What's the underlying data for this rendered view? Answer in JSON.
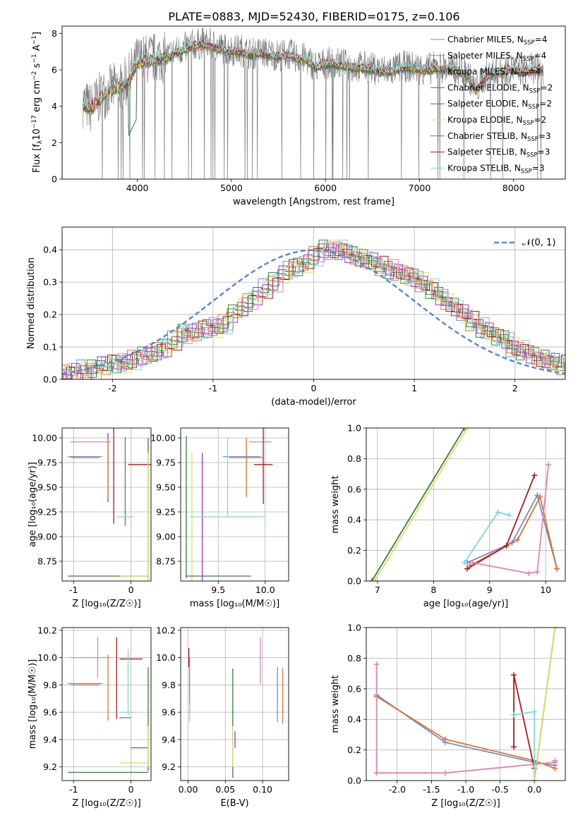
{
  "title": "PLATE=0883, MJD=52430, FIBERID=0175, z=0.106",
  "colors": {
    "chabrier_miles": "#6a8fd6",
    "salpeter_miles": "#e3702d",
    "kroupa_miles": "#2e8b2e",
    "chabrier_elodie": "#3d7a3d",
    "salpeter_elodie": "#a032c8",
    "kroupa_elodie": "#cfe56a",
    "chabrier_stelib": "#707070",
    "salpeter_stelib": "#b01818",
    "kroupa_stelib": "#7fd6d6",
    "pink": "#e37fb7",
    "gauss": "#5b88d8"
  },
  "chart_data": [
    {
      "id": "spectrum",
      "type": "line",
      "xlabel": "wavelength [Angstrom, rest frame]",
      "xlim": [
        3200,
        8550
      ],
      "ylim": [
        0,
        8.4
      ],
      "xticks": [
        4000,
        5000,
        6000,
        7000,
        8000
      ],
      "yticks": [
        0,
        2,
        4,
        6,
        8
      ],
      "legend_placement": "upper-right",
      "series": [
        {
          "name": "Chabrier MILES",
          "sub": "SSP",
          "n": 4,
          "color": "chabrier_miles"
        },
        {
          "name": "Salpeter MILES",
          "sub": "SSP",
          "n": 4,
          "color": "salpeter_miles"
        },
        {
          "name": "Kroupa MILES",
          "sub": "SSP",
          "n": 4,
          "color": "kroupa_miles"
        },
        {
          "name": "Chabrier ELODIE",
          "sub": "SSP",
          "n": 2,
          "color": "chabrier_elodie"
        },
        {
          "name": "Salpeter ELODIE",
          "sub": "SSP",
          "n": 2,
          "color": "salpeter_elodie"
        },
        {
          "name": "Kroupa ELODIE",
          "sub": "SSP",
          "n": 2,
          "color": "kroupa_elodie"
        },
        {
          "name": "Chabrier STELIB",
          "sub": "SSP",
          "n": 3,
          "color": "chabrier_stelib"
        },
        {
          "name": "Salpeter STELIB",
          "sub": "SSP",
          "n": 3,
          "color": "salpeter_stelib"
        },
        {
          "name": "Kroupa STELIB",
          "sub": "SSP",
          "n": 3,
          "color": "kroupa_stelib"
        }
      ],
      "continuum": [
        [
          3400,
          4.2
        ],
        [
          3500,
          3.8
        ],
        [
          3600,
          4.4
        ],
        [
          3700,
          4.8
        ],
        [
          3800,
          5.0
        ],
        [
          3900,
          5.3
        ],
        [
          4000,
          6.4
        ],
        [
          4100,
          6.5
        ],
        [
          4200,
          6.6
        ],
        [
          4300,
          6.6
        ],
        [
          4400,
          6.9
        ],
        [
          4500,
          7.1
        ],
        [
          4600,
          7.3
        ],
        [
          4700,
          7.4
        ],
        [
          4800,
          7.3
        ],
        [
          4900,
          7.1
        ],
        [
          5000,
          7.0
        ],
        [
          5100,
          7.0
        ],
        [
          5200,
          6.8
        ],
        [
          5300,
          6.9
        ],
        [
          5400,
          6.8
        ],
        [
          5500,
          6.7
        ],
        [
          5600,
          6.8
        ],
        [
          5700,
          6.6
        ],
        [
          5800,
          6.5
        ],
        [
          5900,
          6.1
        ],
        [
          6000,
          6.3
        ],
        [
          6100,
          6.3
        ],
        [
          6200,
          6.2
        ],
        [
          6300,
          6.1
        ],
        [
          6400,
          6.1
        ],
        [
          6500,
          6.0
        ],
        [
          6600,
          5.9
        ],
        [
          6700,
          5.9
        ],
        [
          6800,
          6.1
        ],
        [
          6900,
          6.1
        ],
        [
          7000,
          6.0
        ],
        [
          7100,
          6.0
        ],
        [
          7200,
          6.1
        ],
        [
          7300,
          6.0
        ],
        [
          7400,
          5.9
        ],
        [
          7500,
          5.8
        ],
        [
          7600,
          4.8
        ],
        [
          7700,
          5.6
        ],
        [
          7800,
          5.8
        ],
        [
          7900,
          5.9
        ],
        [
          8000,
          6.0
        ],
        [
          8100,
          5.9
        ],
        [
          8200,
          6.0
        ],
        [
          8300,
          6.0
        ]
      ]
    },
    {
      "id": "residuals",
      "type": "line",
      "xlabel": "(data-model)/error",
      "ylabel": "Normed distribution",
      "xlim": [
        -2.5,
        2.5
      ],
      "ylim": [
        0,
        0.47
      ],
      "xticks": [
        -2,
        -1,
        0,
        1,
        2
      ],
      "yticks": [
        0.0,
        0.1,
        0.2,
        0.3,
        0.4
      ],
      "grid": true,
      "legend_placement": "upper-right",
      "gauss_label": "𝒩(0, 1)",
      "bin_width": 0.1,
      "histogram": [
        0.01,
        0.02,
        0.025,
        0.03,
        0.03,
        0.04,
        0.045,
        0.05,
        0.05,
        0.06,
        0.07,
        0.08,
        0.09,
        0.1,
        0.12,
        0.14,
        0.14,
        0.15,
        0.16,
        0.16,
        0.17,
        0.2,
        0.22,
        0.24,
        0.26,
        0.28,
        0.3,
        0.32,
        0.34,
        0.35,
        0.36,
        0.38,
        0.4,
        0.4,
        0.4,
        0.39,
        0.38,
        0.37,
        0.36,
        0.35,
        0.34,
        0.33,
        0.32,
        0.31,
        0.3,
        0.28,
        0.26,
        0.24,
        0.22,
        0.2,
        0.18,
        0.16,
        0.15,
        0.13,
        0.12,
        0.1,
        0.09,
        0.08,
        0.07,
        0.06,
        0.05,
        0.045,
        0.04,
        0.035,
        0.03
      ]
    },
    {
      "id": "age_vs_z",
      "type": "scatter",
      "xlabel": "Z [log₁₀(Z/Z☉)]",
      "ylabel": "age  [log₁₀(age/yr)]",
      "xlim": [
        -1.2,
        0.35
      ],
      "ylim": [
        8.55,
        10.1
      ],
      "xticks": [
        -1,
        0
      ],
      "yticks": [
        8.75,
        9.0,
        9.25,
        9.5,
        9.75,
        10.0
      ],
      "grid": true,
      "errorbars": [
        {
          "color": "pink",
          "x": -0.7,
          "y": 9.96,
          "xe": 0.35,
          "ye": 0.0
        },
        {
          "color": "chabrier_miles",
          "x": -0.8,
          "y": 9.81,
          "xe": 0.3,
          "ye": 0.0
        },
        {
          "color": "salpeter_miles",
          "x": -0.8,
          "y": 9.8,
          "xe": 0.25,
          "ye": 0.0
        },
        {
          "color": "salpeter_elodie",
          "x": -0.4,
          "y": 9.7,
          "xe": 0.0,
          "ye": 0.35
        },
        {
          "color": "salpeter_miles",
          "x": -0.4,
          "y": 9.7,
          "xe": 0.0,
          "ye": 0.3
        },
        {
          "color": "salpeter_stelib",
          "x": -0.3,
          "y": 9.73,
          "xe": 0.0,
          "ye": 0.6
        },
        {
          "color": "salpeter_stelib",
          "x": 0.15,
          "y": 9.73,
          "xe": 0.2,
          "ye": 0.0
        },
        {
          "color": "chabrier_stelib",
          "x": -0.1,
          "y": 9.56,
          "xe": 0.0,
          "ye": 0.45
        },
        {
          "color": "kroupa_stelib",
          "x": -0.1,
          "y": 9.2,
          "xe": 0.15,
          "ye": 0.0
        },
        {
          "color": "chabrier_elodie",
          "x": 0.3,
          "y": 9.28,
          "xe": 0.0,
          "ye": 0.72
        },
        {
          "color": "kroupa_elodie",
          "x": 0.3,
          "y": 9.2,
          "xe": 0.0,
          "ye": 0.65
        },
        {
          "color": "chabrier_elodie",
          "x": -0.4,
          "y": 8.6,
          "xe": 0.7,
          "ye": 0.0
        },
        {
          "color": "kroupa_elodie",
          "x": 0.05,
          "y": 8.6,
          "xe": 0.25,
          "ye": 0.0
        }
      ]
    },
    {
      "id": "age_vs_mass",
      "type": "scatter",
      "xlabel": "mass [log₁₀(M/M☉)]",
      "xlim": [
        9.1,
        10.25
      ],
      "ylim": [
        8.55,
        10.1
      ],
      "xticks": [
        9.5,
        10.0
      ],
      "yticks": [
        8.75,
        9.0,
        9.25,
        9.5,
        9.75,
        10.0
      ],
      "grid": true,
      "errorbars": [
        {
          "color": "pink",
          "x": 9.95,
          "y": 9.96,
          "xe": 0.12,
          "ye": 0.0
        },
        {
          "color": "chabrier_miles",
          "x": 9.75,
          "y": 9.81,
          "xe": 0.2,
          "ye": 0.0
        },
        {
          "color": "salpeter_miles",
          "x": 9.8,
          "y": 9.8,
          "xe": 0.18,
          "ye": 0.0
        },
        {
          "color": "salpeter_miles",
          "x": 9.8,
          "y": 9.7,
          "xe": 0.0,
          "ye": 0.3
        },
        {
          "color": "salpeter_elodie",
          "x": 9.33,
          "y": 9.2,
          "xe": 0.0,
          "ye": 0.65
        },
        {
          "color": "kroupa_elodie",
          "x": 9.22,
          "y": 9.2,
          "xe": 0.0,
          "ye": 0.65
        },
        {
          "color": "chabrier_elodie",
          "x": 9.16,
          "y": 9.3,
          "xe": 0.0,
          "ye": 0.72
        },
        {
          "color": "salpeter_stelib",
          "x": 9.98,
          "y": 9.73,
          "xe": 0.1,
          "ye": 0.4
        },
        {
          "color": "kroupa_stelib",
          "x": 9.6,
          "y": 9.2,
          "xe": 0.4,
          "ye": 0.0
        },
        {
          "color": "kroupa_stelib",
          "x": 9.6,
          "y": 9.6,
          "xe": 0.0,
          "ye": 0.4
        },
        {
          "color": "chabrier_elodie",
          "x": 9.5,
          "y": 8.6,
          "xe": 0.35,
          "ye": 0.0
        }
      ]
    },
    {
      "id": "weight_vs_age",
      "type": "line",
      "xlabel": "age  [log₁₀(age/yr)]",
      "ylabel": "mass weight",
      "xlim": [
        6.8,
        10.35
      ],
      "ylim": [
        0,
        1.0
      ],
      "xticks": [
        7,
        8,
        9,
        10
      ],
      "yticks": [
        0.0,
        0.2,
        0.4,
        0.6,
        0.8,
        1.0
      ],
      "grid": true,
      "series": [
        {
          "color": "chabrier_elodie",
          "x": [
            6.9,
            8.55
          ],
          "y": [
            0.0,
            1.0
          ]
        },
        {
          "color": "kroupa_elodie",
          "x": [
            6.95,
            8.6
          ],
          "y": [
            0.0,
            1.0
          ]
        },
        {
          "color": "chabrier_miles",
          "x": [
            8.6,
            9.4,
            9.85,
            10.2
          ],
          "y": [
            0.12,
            0.25,
            0.56,
            0.08
          ]
        },
        {
          "color": "salpeter_miles",
          "x": [
            8.65,
            9.5,
            9.9,
            10.2
          ],
          "y": [
            0.1,
            0.27,
            0.55,
            0.08
          ]
        },
        {
          "color": "salpeter_stelib",
          "x": [
            8.6,
            9.3,
            9.8
          ],
          "y": [
            0.08,
            0.23,
            0.69
          ]
        },
        {
          "color": "kroupa_stelib",
          "x": [
            8.55,
            9.15,
            9.35
          ],
          "y": [
            0.12,
            0.45,
            0.43
          ]
        },
        {
          "color": "pink",
          "x": [
            8.7,
            9.7,
            9.85,
            10.05
          ],
          "y": [
            0.12,
            0.05,
            0.06,
            0.76
          ]
        }
      ]
    },
    {
      "id": "mass_vs_z",
      "type": "scatter",
      "xlabel": "Z [log₁₀(Z/Z☉)]",
      "ylabel": "mass [log₁₀(M/M☉)]",
      "xlim": [
        -1.2,
        0.35
      ],
      "ylim": [
        9.1,
        10.22
      ],
      "xticks": [
        -1,
        0
      ],
      "yticks": [
        9.2,
        9.4,
        9.6,
        9.8,
        10.0,
        10.2
      ],
      "grid": true,
      "errorbars": [
        {
          "color": "pink",
          "x": -0.7,
          "y": 10.0,
          "xe": 0.35,
          "ye": 0.0
        },
        {
          "color": "pink",
          "x": -0.58,
          "y": 10.0,
          "xe": 0.0,
          "ye": 0.15
        },
        {
          "color": "chabrier_miles",
          "x": -0.8,
          "y": 9.81,
          "xe": 0.3,
          "ye": 0.0
        },
        {
          "color": "salpeter_miles",
          "x": -0.8,
          "y": 9.8,
          "xe": 0.25,
          "ye": 0.0
        },
        {
          "color": "salpeter_miles",
          "x": -0.4,
          "y": 9.78,
          "xe": 0.0,
          "ye": 0.24
        },
        {
          "color": "salpeter_stelib",
          "x": 0.0,
          "y": 9.99,
          "xe": 0.2,
          "ye": 0.0
        },
        {
          "color": "salpeter_stelib",
          "x": -0.25,
          "y": 9.85,
          "xe": 0.0,
          "ye": 0.3
        },
        {
          "color": "chabrier_stelib",
          "x": -0.1,
          "y": 9.56,
          "xe": 0.1,
          "ye": 0.0
        },
        {
          "color": "kroupa_stelib",
          "x": -0.1,
          "y": 9.6,
          "xe": 0.15,
          "ye": 0.0
        },
        {
          "color": "kroupa_stelib",
          "x": -0.05,
          "y": 9.82,
          "xe": 0.0,
          "ye": 0.24
        },
        {
          "color": "chabrier_elodie",
          "x": -0.4,
          "y": 9.16,
          "xe": 0.7,
          "ye": 0.0
        },
        {
          "color": "chabrier_elodie",
          "x": 0.3,
          "y": 9.55,
          "xe": 0.0,
          "ye": 0.38
        },
        {
          "color": "salpeter_elodie",
          "x": 0.15,
          "y": 9.34,
          "xe": 0.15,
          "ye": 0.0
        },
        {
          "color": "kroupa_elodie",
          "x": 0.05,
          "y": 9.23,
          "xe": 0.25,
          "ye": 0.0
        },
        {
          "color": "kroupa_elodie",
          "x": 0.3,
          "y": 9.35,
          "xe": 0.0,
          "ye": 0.15
        }
      ]
    },
    {
      "id": "mass_vs_ebv",
      "type": "scatter",
      "xlabel": "E(B-V)",
      "xlim": [
        -0.01,
        0.135
      ],
      "ylim": [
        9.1,
        10.22
      ],
      "xticks": [
        0.0,
        0.05,
        0.1
      ],
      "yticks": [
        9.2,
        9.4,
        9.6,
        9.8,
        10.0,
        10.2
      ],
      "grid": true,
      "errorbars": [
        {
          "color": "salpeter_stelib",
          "x": 0.001,
          "y": 10.0,
          "xe": 0.0,
          "ye": 0.07
        },
        {
          "color": "chabrier_miles",
          "x": 0.002,
          "y": 9.8,
          "xe": 0.0,
          "ye": 0.2
        },
        {
          "color": "kroupa_stelib",
          "x": 0.002,
          "y": 9.6,
          "xe": 0.0,
          "ye": 0.07
        },
        {
          "color": "chabrier_elodie",
          "x": 0.06,
          "y": 9.52,
          "xe": 0.0,
          "ye": 0.4
        },
        {
          "color": "kroupa_elodie",
          "x": 0.06,
          "y": 9.35,
          "xe": 0.0,
          "ye": 0.15
        },
        {
          "color": "salpeter_elodie",
          "x": 0.063,
          "y": 9.4,
          "xe": 0.0,
          "ye": 0.06
        },
        {
          "color": "pink",
          "x": 0.097,
          "y": 9.98,
          "xe": 0.0,
          "ye": 0.17
        },
        {
          "color": "chabrier_miles",
          "x": 0.12,
          "y": 9.73,
          "xe": 0.0,
          "ye": 0.2
        },
        {
          "color": "salpeter_miles",
          "x": 0.127,
          "y": 9.72,
          "xe": 0.0,
          "ye": 0.2
        }
      ]
    },
    {
      "id": "weight_vs_z",
      "type": "line",
      "xlabel": "Z [log₁₀(Z/Z☉)]",
      "ylabel": "mass weight",
      "xlim": [
        -2.45,
        0.45
      ],
      "ylim": [
        0,
        1.0
      ],
      "xticks": [
        -2.0,
        -1.5,
        -1.0,
        -0.5,
        0.0
      ],
      "yticks": [
        0.0,
        0.2,
        0.4,
        0.6,
        0.8,
        1.0
      ],
      "grid": true,
      "series": [
        {
          "color": "chabrier_miles",
          "x": [
            -2.3,
            -1.3,
            0.0,
            0.3
          ],
          "y": [
            0.56,
            0.25,
            0.12,
            0.1
          ]
        },
        {
          "color": "salpeter_miles",
          "x": [
            -2.3,
            -1.3,
            0.0,
            0.3
          ],
          "y": [
            0.55,
            0.27,
            0.13,
            0.08
          ]
        },
        {
          "color": "salpeter_stelib",
          "x": [
            -0.3,
            -0.3,
            0.0
          ],
          "y": [
            0.22,
            0.69,
            0.08
          ]
        },
        {
          "color": "kroupa_stelib",
          "x": [
            -0.3,
            0.0,
            0.0
          ],
          "y": [
            0.43,
            0.45,
            0.0
          ]
        },
        {
          "color": "chabrier_elodie",
          "x": [
            0.0,
            0.3
          ],
          "y": [
            0.0,
            1.0
          ]
        },
        {
          "color": "kroupa_elodie",
          "x": [
            0.0,
            0.3
          ],
          "y": [
            0.0,
            1.0
          ]
        },
        {
          "color": "pink",
          "x": [
            -2.3,
            -2.3,
            -1.3,
            0.3,
            0.3
          ],
          "y": [
            0.76,
            0.05,
            0.05,
            0.12,
            0.13
          ]
        }
      ]
    }
  ]
}
